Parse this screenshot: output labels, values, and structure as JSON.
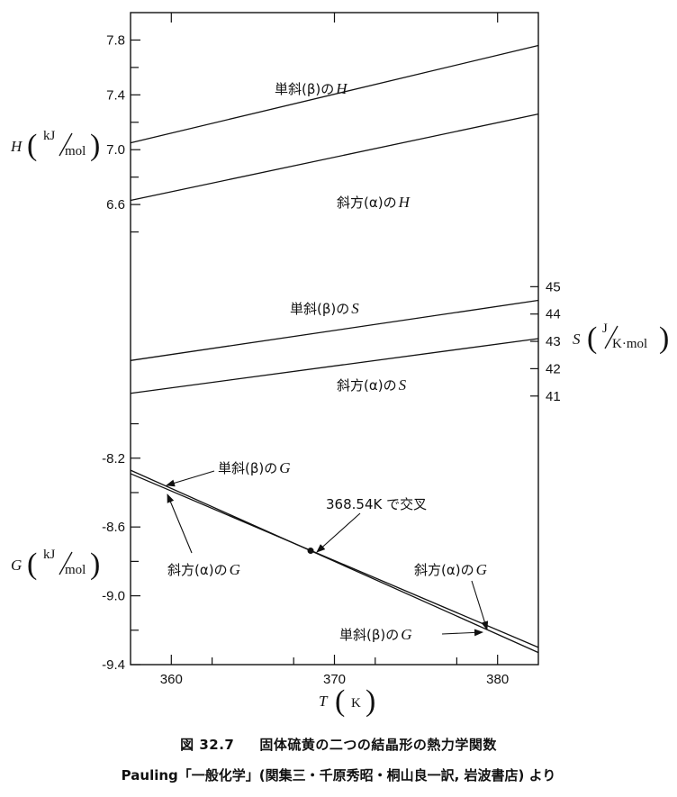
{
  "chart_data": [
    {
      "type": "line",
      "panel": "H",
      "x": [
        357.5,
        382.5
      ],
      "ylim": [
        6.2,
        8.0
      ],
      "y_ticks": [
        "6.6",
        "7.0",
        "7.4",
        "7.8"
      ],
      "axis_symbol": "H",
      "unit_num": "kJ",
      "unit_den": "mol",
      "series": [
        {
          "label": "単斜(β)の",
          "label_var": "H",
          "values": [
            7.05,
            7.76
          ]
        },
        {
          "label": "斜方(α)の",
          "label_var": "H",
          "values": [
            6.63,
            7.26
          ]
        }
      ]
    },
    {
      "type": "line",
      "panel": "S",
      "x": [
        357.5,
        382.5
      ],
      "ylim": [
        40.3,
        46.0
      ],
      "y_ticks": [
        "41",
        "42",
        "43",
        "44",
        "45"
      ],
      "axis_symbol": "S",
      "unit_num": "J",
      "unit_den": "K·mol",
      "series": [
        {
          "label": "単斜(β)の",
          "label_var": "S",
          "values": [
            42.3,
            44.5
          ]
        },
        {
          "label": "斜方(α)の",
          "label_var": "S",
          "values": [
            41.1,
            43.1
          ]
        }
      ]
    },
    {
      "type": "line",
      "panel": "G",
      "x": [
        357.5,
        382.5
      ],
      "ylim": [
        -9.4,
        -7.95
      ],
      "y_ticks": [
        "-8.2",
        "-8.6",
        "-9.0",
        "-9.4"
      ],
      "axis_symbol": "G",
      "unit_num": "kJ",
      "unit_den": "mol",
      "series": [
        {
          "label": "単斜(β)の",
          "label_var": "G",
          "values": [
            -8.27,
            -9.33
          ]
        },
        {
          "label": "斜方(α)の",
          "label_var": "G",
          "values": [
            -8.29,
            -9.3
          ]
        }
      ],
      "intersection": {
        "x": 368.54,
        "label": "368.54K で交叉"
      }
    }
  ],
  "x_axis": {
    "xlim": [
      357.5,
      382.5
    ],
    "ticks": [
      "360",
      "370",
      "380"
    ],
    "symbol": "T",
    "unit": "K"
  },
  "caption": {
    "figure_number": "図 32.7",
    "title": "固体硫黄の二つの結晶形の熱力学関数",
    "source": "Pauling「一般化学」(関集三・千原秀昭・桐山良一訳, 岩波書店) より"
  }
}
